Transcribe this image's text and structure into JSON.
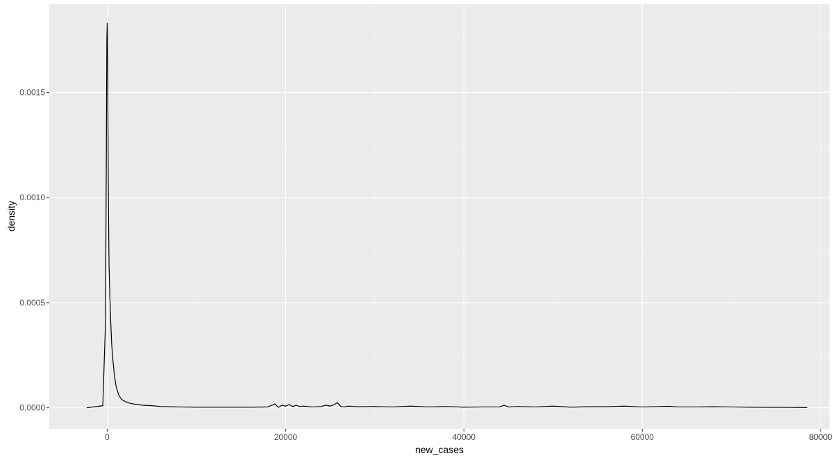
{
  "chart_data": {
    "type": "line",
    "title": "",
    "xlabel": "new_cases",
    "ylabel": "density",
    "xlim": [
      -6500,
      81000
    ],
    "ylim": [
      -0.0001,
      0.00192
    ],
    "x_ticks": [
      0,
      20000,
      40000,
      60000,
      80000
    ],
    "x_tick_labels": [
      "0",
      "20000",
      "40000",
      "60000",
      "80000"
    ],
    "y_ticks": [
      0,
      0.0005,
      0.001,
      0.0015
    ],
    "y_tick_labels": [
      "0.0000",
      "0.0005",
      "0.0010",
      "0.0015"
    ],
    "grid": true,
    "legend": "none",
    "colors": {
      "panel_background": "#ebebeb",
      "grid_major": "#ffffff",
      "grid_minor": "#f5f5f5",
      "line": "#000000",
      "tick_text": "#4d4d4d",
      "axis_title": "#000000"
    },
    "series": [
      {
        "x": [
          -2300,
          -500,
          -200,
          -100,
          -50,
          0,
          30,
          60,
          100,
          150,
          200,
          300,
          400,
          500,
          650,
          800,
          1000,
          1300,
          1600,
          2000,
          2500,
          3000,
          4000,
          5000,
          6000,
          8000,
          10000,
          12000,
          14000,
          16000,
          18000,
          18800,
          19200,
          19600,
          20000,
          20400,
          20800,
          21200,
          21600,
          22000,
          23000,
          24000,
          24500,
          25000,
          25500,
          25800,
          26200,
          26600,
          27000,
          28000,
          30000,
          32000,
          34000,
          36000,
          38000,
          40000,
          42000,
          44000,
          44500,
          45000,
          46000,
          48000,
          50000,
          52000,
          54000,
          56000,
          58000,
          60000,
          62000,
          63000,
          64000,
          66000,
          68000,
          70000,
          72000,
          74000,
          76000,
          78500
        ],
        "y": [
          0,
          1e-05,
          0.0004,
          0.0012,
          0.00175,
          0.00183,
          0.0017,
          0.00152,
          0.0012,
          0.0009,
          0.00068,
          0.00052,
          0.0004,
          0.0003,
          0.00022,
          0.000155,
          0.0001,
          6e-05,
          4e-05,
          3e-05,
          2.2e-05,
          1.8e-05,
          1.2e-05,
          1e-05,
          6e-06,
          4e-06,
          3e-06,
          3e-06,
          3e-06,
          3e-06,
          4e-06,
          1.8e-05,
          2e-06,
          1.2e-05,
          8e-06,
          1.5e-05,
          6e-06,
          1.2e-05,
          6e-06,
          8e-06,
          4e-06,
          6e-06,
          1.2e-05,
          8e-06,
          1.6e-05,
          2.5e-05,
          6e-06,
          4e-06,
          8e-06,
          5e-06,
          6e-06,
          4e-06,
          8e-06,
          4e-06,
          6e-06,
          3e-06,
          4e-06,
          4e-06,
          1.2e-05,
          4e-06,
          6e-06,
          4e-06,
          8e-06,
          3e-06,
          5e-06,
          5e-06,
          8e-06,
          4e-06,
          6e-06,
          7e-06,
          4e-06,
          4e-06,
          5e-06,
          4e-06,
          3e-06,
          2e-06,
          2e-06,
          1e-06
        ]
      }
    ]
  }
}
